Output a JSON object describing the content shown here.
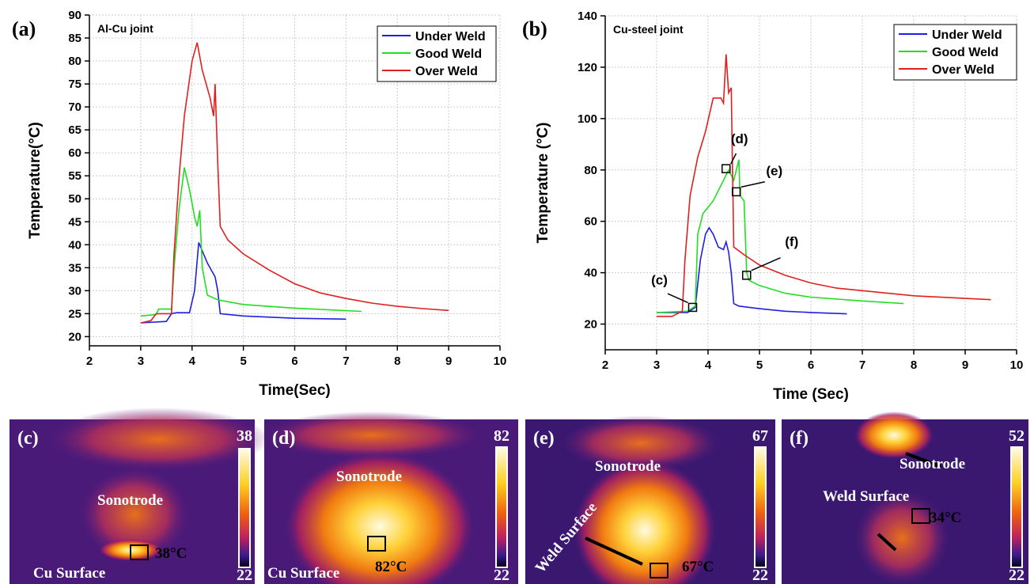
{
  "chart_data": [
    {
      "type": "line",
      "panel_label": "(a)",
      "title": "Al-Cu joint",
      "xlabel": "Time(Sec)",
      "ylabel": "Temperature(°C)",
      "xlim": [
        2,
        10
      ],
      "xticks": [
        2,
        3,
        4,
        5,
        6,
        7,
        8,
        9,
        10
      ],
      "ylim": [
        18,
        90
      ],
      "yticks": [
        20,
        25,
        30,
        35,
        40,
        45,
        50,
        55,
        60,
        65,
        70,
        75,
        80,
        85,
        90
      ],
      "grid": true,
      "legend": "upper right",
      "series": [
        {
          "name": "Under Weld",
          "color": "#1f1fe0",
          "x": [
            3,
            3.5,
            3.6,
            3.7,
            3.95,
            4.05,
            4.13,
            4.3,
            4.45,
            4.5,
            4.55,
            5,
            6,
            7
          ],
          "values": [
            23,
            23.3,
            25,
            25.2,
            25.2,
            30,
            40.5,
            36,
            33,
            30,
            25,
            24.5,
            24,
            23.8
          ]
        },
        {
          "name": "Good Weld",
          "color": "#22dd22",
          "x": [
            3,
            3.3,
            3.35,
            3.6,
            3.65,
            3.75,
            3.85,
            3.95,
            4.05,
            4.1,
            4.15,
            4.2,
            4.3,
            4.5,
            5,
            6,
            7.3
          ],
          "values": [
            24.5,
            24.8,
            26,
            26,
            35,
            48,
            56.8,
            52,
            46,
            44,
            47.5,
            35,
            29,
            28,
            27,
            26.2,
            25.5
          ]
        },
        {
          "name": "Over Weld",
          "color": "#e02020",
          "x": [
            3,
            3.2,
            3.3,
            3.6,
            3.65,
            3.75,
            3.85,
            4.0,
            4.1,
            4.2,
            4.35,
            4.42,
            4.45,
            4.5,
            4.55,
            4.7,
            5,
            5.5,
            6,
            6.5,
            7,
            7.5,
            8,
            8.5,
            9
          ],
          "values": [
            23,
            23.5,
            25,
            25,
            38,
            55,
            68,
            80,
            84,
            78,
            72,
            68,
            75,
            58,
            44,
            41,
            38,
            34.5,
            31.5,
            29.5,
            28.3,
            27.3,
            26.6,
            26.1,
            25.7
          ]
        }
      ]
    },
    {
      "type": "line",
      "panel_label": "(b)",
      "title": "Cu-steel joint",
      "xlabel": "Time (Sec)",
      "ylabel": "Temperature (°C)",
      "xlim": [
        2,
        10
      ],
      "xticks": [
        2,
        3,
        4,
        5,
        6,
        7,
        8,
        9,
        10
      ],
      "ylim": [
        10,
        140
      ],
      "yticks": [
        20,
        40,
        60,
        80,
        100,
        120,
        140
      ],
      "grid": true,
      "legend": "upper right",
      "series": [
        {
          "name": "Under Weld",
          "color": "#1f1fe0",
          "x": [
            3,
            3.6,
            3.75,
            3.85,
            3.95,
            4.02,
            4.1,
            4.2,
            4.3,
            4.35,
            4.4,
            4.45,
            4.5,
            4.6,
            5,
            5.5,
            6,
            6.7
          ],
          "values": [
            24.5,
            24.5,
            26.5,
            45,
            55,
            57.5,
            55,
            50,
            49,
            52,
            48,
            40,
            28,
            27,
            26,
            25,
            24.5,
            24
          ]
        },
        {
          "name": "Good Weld",
          "color": "#22dd22",
          "x": [
            3,
            3.6,
            3.75,
            3.8,
            3.9,
            4.1,
            4.3,
            4.4,
            4.5,
            4.6,
            4.62,
            4.7,
            4.75,
            4.8,
            5,
            5.5,
            6,
            7,
            7.8
          ],
          "values": [
            24.5,
            25,
            27,
            55,
            63,
            68,
            76,
            80,
            76,
            84,
            70,
            68,
            40,
            37,
            35,
            32,
            30.5,
            29,
            28
          ]
        },
        {
          "name": "Over Weld",
          "color": "#e02020",
          "x": [
            3,
            3.3,
            3.5,
            3.55,
            3.65,
            3.8,
            3.95,
            4.1,
            4.25,
            4.3,
            4.35,
            4.4,
            4.45,
            4.5,
            4.7,
            5,
            5.5,
            6,
            6.5,
            7,
            8,
            9,
            9.5
          ],
          "values": [
            23,
            23,
            25,
            45,
            70,
            85,
            95,
            108,
            108,
            106,
            125,
            110,
            112,
            50,
            47,
            43,
            39,
            36,
            34,
            33,
            31,
            30,
            29.5
          ]
        }
      ],
      "annotations": [
        {
          "text": "(c)",
          "x": 3.7,
          "y": 26.5
        },
        {
          "text": "(d)",
          "x": 4.35,
          "y": 80.5
        },
        {
          "text": "(e)",
          "x": 4.55,
          "y": 71.5
        },
        {
          "text": "(f)",
          "x": 4.75,
          "y": 39
        }
      ]
    }
  ],
  "images": [
    {
      "label": "(c)",
      "scale_max": 38,
      "scale_min": 22,
      "texts": [
        "Sonotrode",
        "Cu Surface",
        "38°C"
      ]
    },
    {
      "label": "(d)",
      "scale_max": 82,
      "scale_min": 22,
      "texts": [
        "Sonotrode",
        "Cu Surface",
        "82°C"
      ]
    },
    {
      "label": "(e)",
      "scale_max": 67,
      "scale_min": 22,
      "texts": [
        "Sonotrode",
        "Weld Surface",
        "67°C"
      ]
    },
    {
      "label": "(f)",
      "scale_max": 52,
      "scale_min": 22,
      "texts": [
        "Sonotrode",
        "Weld Surface",
        "34°C"
      ]
    }
  ]
}
